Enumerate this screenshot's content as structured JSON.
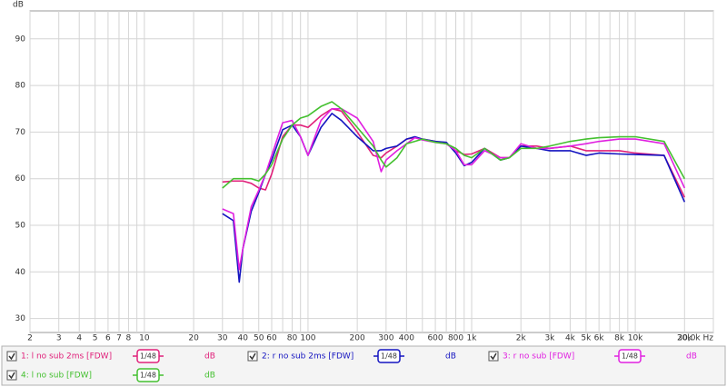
{
  "chart_data": {
    "type": "line",
    "ylabel": "dB",
    "smoothing_label": "1/48",
    "x": [
      30,
      35,
      38,
      40,
      45,
      50,
      55,
      60,
      70,
      80,
      90,
      100,
      120,
      140,
      160,
      200,
      250,
      280,
      300,
      350,
      400,
      450,
      500,
      600,
      700,
      800,
      900,
      1000,
      1200,
      1500,
      1700,
      2000,
      2500,
      3000,
      4000,
      5000,
      6000,
      8000,
      10000,
      15000,
      20000
    ],
    "series": [
      {
        "name": "1: l no sub 2ms [FDW]",
        "color": "#e0207a",
        "values": [
          59.3,
          59.5,
          59.5,
          59.5,
          59,
          58,
          57.6,
          61,
          69,
          71.5,
          71.5,
          71,
          73.5,
          75,
          74.5,
          70,
          65,
          64.5,
          65.5,
          67,
          68.5,
          68.8,
          68.5,
          68,
          67.5,
          66,
          65.2,
          65.3,
          66.5,
          64.5,
          64.5,
          67,
          67,
          66.5,
          67,
          66,
          66,
          66,
          65.5,
          65,
          56
        ]
      },
      {
        "name": "2: r no sub 2ms [FDW]",
        "color": "#1414c0",
        "values": [
          52.5,
          51,
          37.8,
          45,
          53,
          57,
          61,
          64,
          70.5,
          71.5,
          69,
          65,
          71,
          74,
          72.5,
          69,
          66,
          66,
          66.5,
          67,
          68.5,
          69,
          68.5,
          68,
          67.8,
          65.5,
          62.8,
          63.5,
          66.5,
          64,
          64.5,
          67,
          66.5,
          66,
          66,
          65,
          65.5,
          65.3,
          65.2,
          65,
          55
        ]
      },
      {
        "name": "3: r no sub [FDW]",
        "color": "#e020e0",
        "values": [
          53.5,
          52.5,
          40.5,
          45,
          54,
          57.5,
          61,
          65,
          72,
          72.5,
          69,
          65,
          72.5,
          75,
          75,
          73,
          68,
          61.5,
          64,
          66,
          67.5,
          68.8,
          68.3,
          67.8,
          67.5,
          66,
          63,
          63,
          66,
          64.5,
          64.5,
          67.5,
          66.5,
          66.5,
          67,
          67.5,
          68,
          68.5,
          68.5,
          67.5,
          58
        ]
      },
      {
        "name": "4: l no sub [FDW]",
        "color": "#44c030",
        "values": [
          58,
          60,
          60,
          60,
          60,
          59.5,
          61,
          63,
          68.5,
          71.5,
          73,
          73.5,
          75.5,
          76.5,
          75,
          71,
          67,
          64,
          62.5,
          64.5,
          67.5,
          68,
          68.5,
          67.8,
          67.5,
          66.5,
          65,
          64.5,
          66.5,
          64,
          64.5,
          66.5,
          66.5,
          67,
          68,
          68.5,
          68.8,
          69,
          69,
          68,
          60
        ]
      }
    ],
    "xlog": true,
    "xlim": [
      2,
      30000
    ],
    "xticks": [
      2,
      3,
      4,
      5,
      6,
      7,
      8,
      10,
      20,
      30,
      40,
      50,
      60,
      80,
      100,
      200,
      300,
      400,
      600,
      800,
      {
        "value": 1000,
        "label": "1k"
      },
      {
        "value": 2000,
        "label": "2k"
      },
      {
        "value": 3000,
        "label": "3k"
      },
      {
        "value": 4000,
        "label": "4k"
      },
      {
        "value": 5000,
        "label": "5k"
      },
      {
        "value": 6000,
        "label": "6k"
      },
      {
        "value": 8000,
        "label": "8k"
      },
      {
        "value": 10000,
        "label": "10k"
      },
      {
        "value": 20000,
        "label": "20k"
      },
      {
        "value": 30000,
        "label": "30,0k Hz"
      }
    ],
    "xgrid_minor": [
      9,
      70,
      90,
      500,
      700,
      900,
      7000,
      9000
    ],
    "ylim": [
      27,
      96
    ],
    "yticks": [
      30,
      40,
      50,
      60,
      70,
      80,
      90
    ],
    "grid": true
  }
}
